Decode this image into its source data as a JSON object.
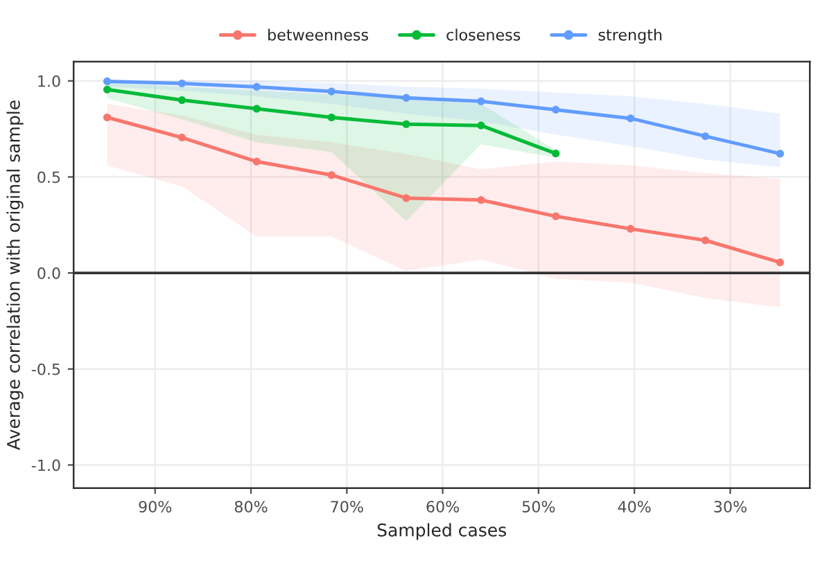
{
  "chart_data": {
    "type": "line",
    "xlabel": "Sampled cases",
    "ylabel": "Average correlation with original sample",
    "legend": "top",
    "grid": true,
    "marker": "circle",
    "line_style": "solid",
    "xlim": [
      98.5,
      21.7
    ],
    "xticks": [
      {
        "value": 90,
        "label": "90%"
      },
      {
        "value": 80,
        "label": "80%"
      },
      {
        "value": 70,
        "label": "70%"
      },
      {
        "value": 60,
        "label": "60%"
      },
      {
        "value": 50,
        "label": "50%"
      },
      {
        "value": 40,
        "label": "40%"
      },
      {
        "value": 30,
        "label": "30%"
      }
    ],
    "ylim": [
      -1.12,
      1.1
    ],
    "yticks": [
      {
        "value": -1,
        "label": "-1.0"
      },
      {
        "value": -0.5,
        "label": "-0.5"
      },
      {
        "value": 0,
        "label": "0.0"
      },
      {
        "value": 0.5,
        "label": "0.5"
      },
      {
        "value": 1,
        "label": "1.0"
      }
    ],
    "ref_lines": [
      {
        "axis": "y",
        "value": 0,
        "color": "#333333"
      }
    ],
    "series": [
      {
        "name": "betweenness",
        "color": "#f8766d",
        "x": [
          95,
          87.2,
          79.4,
          71.6,
          63.8,
          56,
          48.2,
          40.4,
          32.6,
          24.8
        ],
        "values": [
          0.81,
          0.705,
          0.58,
          0.51,
          0.39,
          0.38,
          0.295,
          0.23,
          0.17,
          0.055
        ],
        "lower": [
          0.56,
          0.45,
          0.19,
          0.19,
          0.01,
          0.07,
          -0.03,
          -0.05,
          -0.13,
          -0.18
        ],
        "upper": [
          0.88,
          0.82,
          0.72,
          0.68,
          0.62,
          0.54,
          0.58,
          0.56,
          0.52,
          0.49
        ]
      },
      {
        "name": "closeness",
        "color": "#00ba38",
        "x": [
          95,
          87.2,
          79.4,
          71.6,
          63.8,
          56,
          48.2
        ],
        "values": [
          0.955,
          0.9,
          0.855,
          0.81,
          0.775,
          0.768,
          0.622
        ],
        "lower": [
          0.91,
          0.8,
          0.68,
          0.63,
          0.27,
          0.67,
          0.6
        ],
        "upper": [
          0.99,
          0.97,
          0.95,
          0.93,
          0.91,
          0.88,
          0.64
        ]
      },
      {
        "name": "strength",
        "color": "#619cff",
        "x": [
          95,
          87.2,
          79.4,
          71.6,
          63.8,
          56,
          48.2,
          40.4,
          32.6,
          24.8
        ],
        "values": [
          0.998,
          0.987,
          0.969,
          0.945,
          0.912,
          0.894,
          0.85,
          0.805,
          0.712,
          0.621
        ],
        "lower": [
          0.97,
          0.95,
          0.92,
          0.88,
          0.83,
          0.79,
          0.72,
          0.66,
          0.59,
          0.55
        ],
        "upper": [
          1.0,
          1.0,
          1.0,
          0.99,
          0.97,
          0.96,
          0.94,
          0.92,
          0.88,
          0.83
        ]
      }
    ]
  }
}
